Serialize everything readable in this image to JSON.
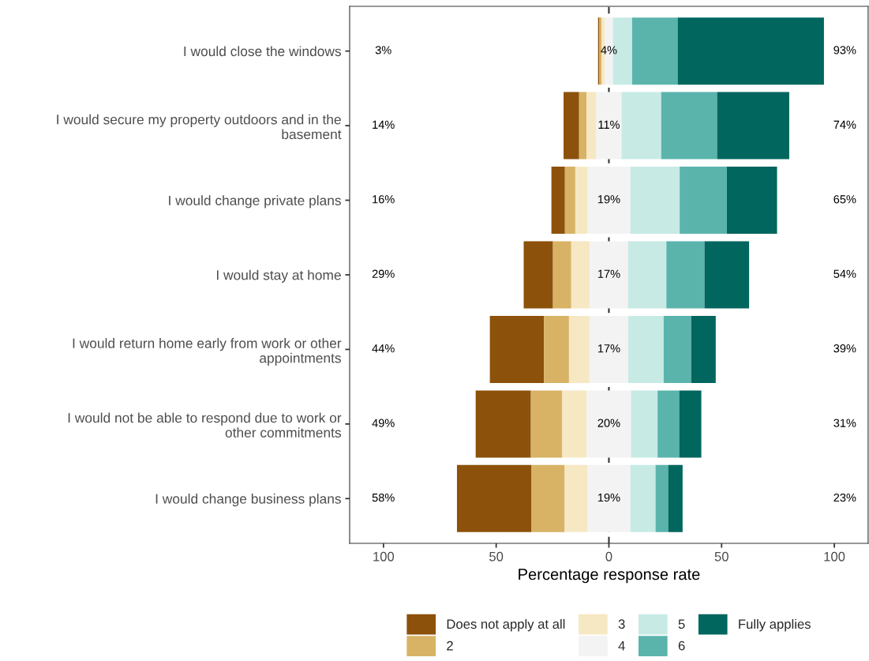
{
  "chart_data": {
    "type": "bar",
    "orientation": "horizontal",
    "xlabel": "Percentage response rate",
    "categories": [
      "I would close the windows",
      "I would secure my property outdoors and in the\nbasement",
      "I would change private plans",
      "I would stay at home",
      "I would return home early from work or other\nappointments",
      "I would not be able to respond due to work or\nother commitments",
      "I would change business plans"
    ],
    "series": [
      {
        "name": "Does not apply at all",
        "color": "#8c510a",
        "base": [
          -4.8,
          -20.1,
          -25.5,
          -37.8,
          -52.8,
          -59.1,
          -67.4
        ],
        "values": [
          0.6,
          6.9,
          6.0,
          13.0,
          24.0,
          24.5,
          33.1
        ]
      },
      {
        "name": "2",
        "color": "#d8b365",
        "base": [
          -4.2,
          -13.2,
          -19.5,
          -24.8,
          -28.8,
          -34.6,
          -34.3
        ],
        "values": [
          1.0,
          3.3,
          4.6,
          8.1,
          11.1,
          13.9,
          14.7
        ]
      },
      {
        "name": "3",
        "color": "#f6e8c3",
        "base": [
          -3.2,
          -9.9,
          -14.9,
          -16.7,
          -17.7,
          -20.7,
          -19.6
        ],
        "values": [
          1.4,
          4.3,
          5.3,
          8.2,
          9.1,
          10.9,
          10.0
        ]
      },
      {
        "name": "4",
        "color": "#f3f3f3",
        "base": [
          -1.8,
          -5.6,
          -9.6,
          -8.5,
          -8.6,
          -9.8,
          -9.6
        ],
        "values": [
          3.6,
          11.2,
          19.1,
          17.0,
          17.2,
          19.6,
          19.1
        ]
      },
      {
        "name": "5",
        "color": "#c7eae5",
        "base": [
          1.8,
          5.6,
          9.5,
          8.5,
          8.6,
          9.8,
          9.5
        ],
        "values": [
          8.5,
          17.6,
          21.9,
          17.0,
          15.7,
          11.8,
          11.2
        ]
      },
      {
        "name": "6",
        "color": "#5ab4ac",
        "base": [
          10.3,
          23.2,
          31.4,
          25.5,
          24.3,
          21.6,
          20.7
        ],
        "values": [
          20.2,
          24.8,
          20.9,
          16.9,
          12.2,
          9.6,
          5.6
        ]
      },
      {
        "name": "Fully applies",
        "color": "#01665e",
        "base": [
          30.5,
          48.0,
          52.3,
          42.4,
          36.5,
          31.2,
          26.3
        ],
        "values": [
          64.9,
          32.0,
          22.3,
          19.8,
          10.9,
          9.8,
          6.4
        ]
      }
    ],
    "xlim": [
      -115,
      115
    ],
    "xticks": [
      {
        "value": -100,
        "label": "100"
      },
      {
        "value": -50,
        "label": "50"
      },
      0,
      50,
      100
    ],
    "ref_lines": [
      {
        "axis": "x",
        "value": 0,
        "color": "#333333",
        "line_style": "dashed"
      }
    ],
    "legend": "bottom",
    "annotations": [
      "3%",
      "4%",
      "93%",
      "14%",
      "11%",
      "74%",
      "16%",
      "19%",
      "65%",
      "29%",
      "17%",
      "54%",
      "44%",
      "17%",
      "39%",
      "49%",
      "20%",
      "31%",
      "58%",
      "19%",
      "23%"
    ]
  }
}
